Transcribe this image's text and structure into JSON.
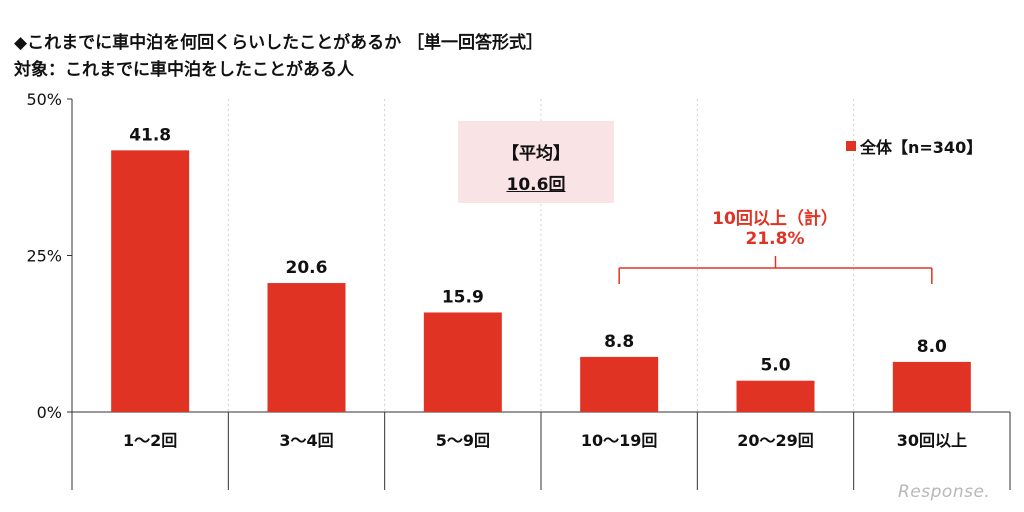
{
  "titles": {
    "line1": "◆これまでに車中泊を何回くらいしたことがあるか ［単一回答形式］",
    "line2": "対象：これまでに車中泊をしたことがある人"
  },
  "average_box": {
    "label": "【平均】",
    "value": "10.6回"
  },
  "legend": {
    "label": "全体【n=340】"
  },
  "bracket": {
    "label1": "10回以上（計）",
    "label2": "21.8%"
  },
  "watermark": "Response.",
  "colors": {
    "bar": "#e03324",
    "bracket": "#e03324",
    "average_bg": "#f9e3e4"
  },
  "chart_data": {
    "type": "bar",
    "categories": [
      "1～2回",
      "3～4回",
      "5～9回",
      "10～19回",
      "20～29回",
      "30回以上"
    ],
    "series": [
      {
        "name": "全体【n=340】",
        "values": [
          41.8,
          20.6,
          15.9,
          8.8,
          5.0,
          8.0
        ]
      }
    ],
    "data_labels": [
      "41.8",
      "20.6",
      "15.9",
      "8.8",
      "5.0",
      "8.0"
    ],
    "ylim": [
      0,
      50
    ],
    "yticks": [
      0,
      25,
      50
    ],
    "ytick_labels": [
      "0%",
      "25%",
      "50%"
    ],
    "grid": "vertical-dashed",
    "legend_position": "top-right"
  }
}
